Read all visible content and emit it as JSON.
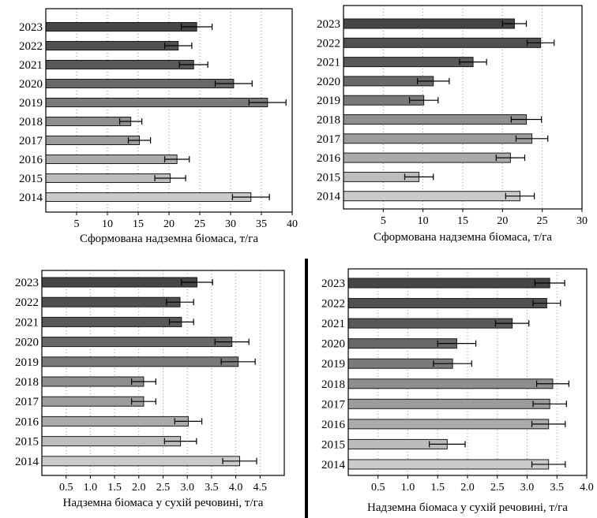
{
  "chart_data": [
    {
      "type": "bar",
      "orientation": "horizontal",
      "categories": [
        "2023",
        "2022",
        "2021",
        "2020",
        "2019",
        "2018",
        "2017",
        "2016",
        "2015",
        "2014"
      ],
      "values": [
        24.5,
        21.5,
        24.0,
        30.5,
        36.0,
        13.8,
        15.2,
        21.3,
        20.2,
        33.3
      ],
      "errors": [
        2.5,
        2.2,
        2.3,
        3.0,
        3.0,
        1.8,
        1.8,
        2.0,
        2.5,
        3.0
      ],
      "bar_colors": [
        "#454545",
        "#505050",
        "#585858",
        "#686868",
        "#7a7a7a",
        "#8e8e8e",
        "#9c9c9c",
        "#ababab",
        "#bcbcbc",
        "#cacaca"
      ],
      "xlabel": "Сформована надземна біомаса, т/га",
      "xlim": [
        0,
        40
      ],
      "xticks": [
        5,
        10,
        15,
        20,
        25,
        30,
        35,
        40
      ],
      "xtick_labels": [
        "5",
        "10",
        "15",
        "20",
        "25",
        "30",
        "35",
        "40"
      ],
      "grid": "vertical dotted"
    },
    {
      "type": "bar",
      "orientation": "horizontal",
      "categories": [
        "2023",
        "2022",
        "2021",
        "2020",
        "2019",
        "2018",
        "2017",
        "2016",
        "2015",
        "2014"
      ],
      "values": [
        21.5,
        24.8,
        16.3,
        11.3,
        10.1,
        23.0,
        23.7,
        21.0,
        9.5,
        22.2
      ],
      "errors": [
        1.5,
        1.7,
        1.7,
        2.0,
        1.8,
        1.9,
        2.0,
        1.8,
        1.8,
        1.8
      ],
      "bar_colors": [
        "#454545",
        "#505050",
        "#585858",
        "#686868",
        "#7a7a7a",
        "#8e8e8e",
        "#9c9c9c",
        "#ababab",
        "#bcbcbc",
        "#cacaca"
      ],
      "xlabel": "Сформована надземна біомаса, т/га",
      "xlim": [
        0,
        30
      ],
      "xticks": [
        5,
        10,
        15,
        20,
        25,
        30
      ],
      "xtick_labels": [
        "5",
        "10",
        "15",
        "20",
        "25",
        "30"
      ],
      "grid": "vertical dotted"
    },
    {
      "type": "bar",
      "orientation": "horizontal",
      "categories": [
        "2023",
        "2022",
        "2021",
        "2020",
        "2019",
        "2018",
        "2017",
        "2016",
        "2015",
        "2014"
      ],
      "values": [
        3.2,
        2.85,
        2.88,
        3.92,
        4.05,
        2.1,
        2.1,
        3.02,
        2.86,
        4.08
      ],
      "errors": [
        0.32,
        0.28,
        0.25,
        0.35,
        0.35,
        0.25,
        0.25,
        0.28,
        0.33,
        0.35
      ],
      "bar_colors": [
        "#454545",
        "#505050",
        "#585858",
        "#686868",
        "#7a7a7a",
        "#8e8e8e",
        "#9c9c9c",
        "#ababab",
        "#bcbcbc",
        "#cacaca"
      ],
      "xlabel": "Надземна біомаса у сухій речовині, т/га",
      "xlim": [
        0,
        5.0
      ],
      "xticks": [
        0.5,
        1.0,
        1.5,
        2.0,
        2.5,
        3.0,
        3.5,
        4.0,
        4.5
      ],
      "xtick_labels": [
        "0.5",
        "1.0",
        "1.5",
        "2.0",
        "2.5",
        "3.0",
        "3.5",
        "4.0",
        "4.5"
      ],
      "grid": "vertical dotted"
    },
    {
      "type": "bar",
      "orientation": "horizontal",
      "categories": [
        "2023",
        "2022",
        "2021",
        "2020",
        "2019",
        "2018",
        "2017",
        "2016",
        "2015",
        "2014"
      ],
      "values": [
        3.38,
        3.33,
        2.75,
        1.82,
        1.75,
        3.43,
        3.38,
        3.36,
        1.66,
        3.36
      ],
      "errors": [
        0.25,
        0.23,
        0.28,
        0.32,
        0.32,
        0.27,
        0.28,
        0.28,
        0.3,
        0.28
      ],
      "bar_colors": [
        "#454545",
        "#505050",
        "#585858",
        "#686868",
        "#7a7a7a",
        "#8e8e8e",
        "#9c9c9c",
        "#ababab",
        "#bcbcbc",
        "#cacaca"
      ],
      "xlabel": "Надземна біомаса у сухій речовині, т/га",
      "xlim": [
        0,
        4.0
      ],
      "xticks": [
        0.5,
        1.0,
        1.5,
        2.0,
        2.5,
        3.0,
        3.5,
        4.0
      ],
      "xtick_labels": [
        "0.5",
        "1.0",
        "1.5",
        "2.0",
        "2.5",
        "3.0",
        "3.5",
        "4.0"
      ],
      "grid": "vertical dotted"
    }
  ]
}
